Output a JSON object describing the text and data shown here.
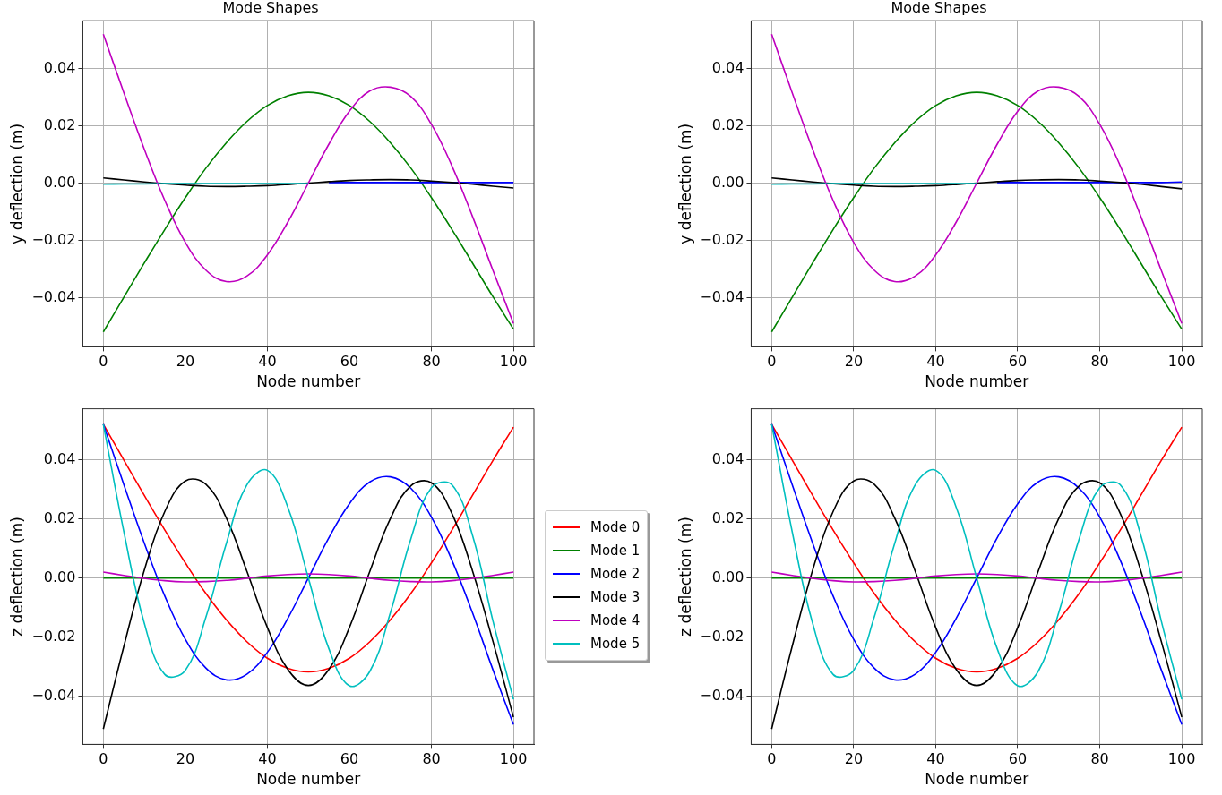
{
  "chart_data": [
    {
      "type": "line",
      "title": "Mode Shapes",
      "xlabel": "Node number",
      "ylabel": "y deflection (m)",
      "x": [
        0,
        5,
        10,
        15,
        20,
        25,
        30,
        35,
        40,
        45,
        50,
        55,
        60,
        65,
        70,
        75,
        80,
        85,
        90,
        95,
        100
      ],
      "xlim": [
        -5,
        105
      ],
      "ylim": [
        -0.0572,
        0.0567
      ],
      "xticks": [
        0,
        20,
        40,
        60,
        80,
        100
      ],
      "yticks": [
        {
          "value": -0.04,
          "label": "−0.04"
        },
        {
          "value": -0.02,
          "label": "−0.02"
        },
        {
          "value": 0,
          "label": "0.00"
        },
        {
          "value": 0.02,
          "label": "0.02"
        },
        {
          "value": 0.04,
          "label": "0.04"
        }
      ],
      "grid": true,
      "legend": false,
      "marker": "none",
      "line_style": "solid",
      "series": [
        {
          "color": "#008000",
          "values": [
            -0.052,
            -0.0399,
            -0.0279,
            -0.0162,
            -0.0051,
            0.0052,
            0.0141,
            0.0215,
            0.0271,
            0.0305,
            0.0317,
            0.0305,
            0.0271,
            0.0215,
            0.0141,
            0.0052,
            -0.0051,
            -0.0162,
            -0.0279,
            -0.0397,
            -0.051
          ]
        },
        {
          "color": "#0000ff",
          "values": [
            null,
            null,
            null,
            null,
            null,
            null,
            null,
            null,
            null,
            null,
            null,
            0.0002,
            0.0002,
            0.0002,
            0.0002,
            0.0002,
            0.0002,
            0.0002,
            0.0002,
            0.0002,
            0.0002
          ]
        },
        {
          "color": "#000000",
          "values": [
            0.0018,
            0.0011,
            0.0004,
            -0.0002,
            -0.0007,
            -0.0011,
            -0.0012,
            -0.0011,
            -0.0009,
            -0.0005,
            0,
            0.0005,
            0.0009,
            0.0011,
            0.0012,
            0.0011,
            0.0007,
            0.0002,
            -0.0004,
            -0.0011,
            -0.0017
          ]
        },
        {
          "color": "#bf00bf",
          "values": [
            0.052,
            0.0316,
            0.0118,
            -0.0061,
            -0.0207,
            -0.0304,
            -0.0344,
            -0.0325,
            -0.0251,
            -0.0136,
            0,
            0.0136,
            0.0251,
            0.0322,
            0.0335,
            0.0302,
            0.0205,
            0.006,
            -0.0116,
            -0.0305,
            -0.049
          ]
        },
        {
          "color": "#00bfbf",
          "values": [
            -0.0004,
            -0.0003,
            -0.0003,
            -0.0002,
            -0.0002,
            -0.0002,
            -0.0002,
            -0.0002,
            -0.0002,
            -0.0002,
            -0.0002,
            null,
            null,
            null,
            null,
            null,
            null,
            null,
            null,
            null,
            null
          ]
        }
      ]
    },
    {
      "type": "line",
      "title": "Mode Shapes",
      "xlabel": "Node number",
      "ylabel": "y deflection (m)",
      "x": [
        0,
        5,
        10,
        15,
        20,
        25,
        30,
        35,
        40,
        45,
        50,
        55,
        60,
        65,
        70,
        75,
        80,
        85,
        90,
        95,
        100
      ],
      "xlim": [
        -5,
        105
      ],
      "ylim": [
        -0.0572,
        0.0567
      ],
      "xticks": [
        0,
        20,
        40,
        60,
        80,
        100
      ],
      "yticks": [
        {
          "value": -0.04,
          "label": "−0.04"
        },
        {
          "value": -0.02,
          "label": "−0.02"
        },
        {
          "value": 0,
          "label": "0.00"
        },
        {
          "value": 0.02,
          "label": "0.02"
        },
        {
          "value": 0.04,
          "label": "0.04"
        }
      ],
      "grid": true,
      "legend": false,
      "marker": "none",
      "line_style": "solid",
      "series": [
        {
          "color": "#008000",
          "values": [
            -0.052,
            -0.0399,
            -0.0279,
            -0.0162,
            -0.0051,
            0.0052,
            0.0141,
            0.0215,
            0.0271,
            0.0305,
            0.0317,
            0.0305,
            0.0271,
            0.0215,
            0.0141,
            0.0052,
            -0.0051,
            -0.0162,
            -0.0279,
            -0.0397,
            -0.051
          ]
        },
        {
          "color": "#0000ff",
          "values": [
            null,
            null,
            null,
            null,
            null,
            null,
            null,
            null,
            null,
            null,
            null,
            0.0002,
            0.0002,
            0.0002,
            0.0002,
            0.0002,
            0.0002,
            0.0002,
            0.0002,
            0.0002,
            0.0004
          ]
        },
        {
          "color": "#000000",
          "values": [
            0.0018,
            0.0011,
            0.0004,
            -0.0002,
            -0.0007,
            -0.0011,
            -0.0012,
            -0.0011,
            -0.0009,
            -0.0005,
            0,
            0.0005,
            0.0009,
            0.0011,
            0.0012,
            0.0011,
            0.0007,
            0.0002,
            -0.0004,
            -0.0012,
            -0.002
          ]
        },
        {
          "color": "#bf00bf",
          "values": [
            0.052,
            0.0316,
            0.0118,
            -0.0061,
            -0.0207,
            -0.0304,
            -0.0344,
            -0.0325,
            -0.0251,
            -0.0136,
            0,
            0.0136,
            0.0251,
            0.0322,
            0.0335,
            0.0302,
            0.0205,
            0.006,
            -0.0116,
            -0.0305,
            -0.049
          ]
        },
        {
          "color": "#00bfbf",
          "values": [
            -0.0004,
            -0.0003,
            -0.0003,
            -0.0002,
            -0.0002,
            -0.0002,
            -0.0002,
            -0.0002,
            -0.0002,
            -0.0002,
            -0.0002,
            null,
            null,
            null,
            null,
            null,
            null,
            null,
            null,
            null,
            null
          ]
        }
      ]
    },
    {
      "type": "line",
      "xlabel": "Node number",
      "ylabel": "z deflection (m)",
      "x": [
        0,
        5,
        10,
        15,
        20,
        25,
        30,
        35,
        40,
        45,
        50,
        55,
        60,
        65,
        70,
        75,
        80,
        85,
        90,
        95,
        100
      ],
      "xlim": [
        -5,
        105
      ],
      "ylim": [
        -0.0562,
        0.0572
      ],
      "xticks": [
        0,
        20,
        40,
        60,
        80,
        100
      ],
      "yticks": [
        {
          "value": -0.04,
          "label": "−0.04"
        },
        {
          "value": -0.02,
          "label": "−0.02"
        },
        {
          "value": 0,
          "label": "0.00"
        },
        {
          "value": 0.02,
          "label": "0.02"
        },
        {
          "value": 0.04,
          "label": "0.04"
        }
      ],
      "grid": true,
      "legend": "right",
      "marker": "none",
      "line_style": "solid",
      "series": [
        {
          "name": "Mode 0",
          "color": "#ff0000",
          "values": [
            0.052,
            0.0399,
            0.0279,
            0.0162,
            0.0051,
            -0.0052,
            -0.0141,
            -0.0215,
            -0.0271,
            -0.0305,
            -0.0317,
            -0.0305,
            -0.0271,
            -0.0215,
            -0.0141,
            -0.0052,
            0.0051,
            0.0162,
            0.0279,
            0.0397,
            0.051
          ]
        },
        {
          "name": "Mode 1",
          "color": "#008000",
          "values": [
            0,
            0,
            0,
            0,
            0,
            0,
            0,
            0,
            0,
            0,
            0,
            0,
            0,
            0,
            0,
            0,
            0,
            0,
            0,
            0,
            0
          ]
        },
        {
          "name": "Mode 2",
          "color": "#0000ff",
          "values": [
            0.052,
            0.0316,
            0.0118,
            -0.0061,
            -0.0207,
            -0.0304,
            -0.0344,
            -0.0325,
            -0.0251,
            -0.0136,
            0,
            0.0136,
            0.0251,
            0.0325,
            0.0342,
            0.0303,
            0.0206,
            0.006,
            -0.0117,
            -0.031,
            -0.0495
          ]
        },
        {
          "name": "Mode 3",
          "color": "#000000",
          "values": [
            -0.051,
            -0.0231,
            0.0027,
            0.0225,
            0.0328,
            0.0317,
            0.0203,
            0.0023,
            -0.0167,
            -0.0309,
            -0.0363,
            -0.0309,
            -0.0167,
            0.0023,
            0.0201,
            0.0312,
            0.0322,
            0.0218,
            0.0025,
            -0.0214,
            -0.047
          ]
        },
        {
          "name": "Mode 4",
          "color": "#bf00bf",
          "values": [
            0.002,
            0.0009,
            -0.0001,
            -0.0009,
            -0.0013,
            -0.0012,
            -0.0008,
            -0.0001,
            0.0007,
            0.0012,
            0.0014,
            0.0012,
            0.0007,
            -0.0001,
            -0.0008,
            -0.0012,
            -0.0013,
            -0.0009,
            -0.0001,
            0.0009,
            0.002
          ]
        },
        {
          "name": "Mode 5",
          "color": "#00bfbf",
          "values": [
            0.052,
            0.0157,
            -0.0153,
            -0.0326,
            -0.0312,
            -0.0133,
            0.0117,
            0.0315,
            0.0364,
            0.0239,
            0,
            -0.0239,
            -0.0364,
            -0.0315,
            -0.0117,
            0.0133,
            0.0305,
            0.0315,
            0.0145,
            -0.0145,
            -0.041
          ]
        }
      ]
    },
    {
      "type": "line",
      "xlabel": "Node number",
      "ylabel": "z deflection (m)",
      "x": [
        0,
        5,
        10,
        15,
        20,
        25,
        30,
        35,
        40,
        45,
        50,
        55,
        60,
        65,
        70,
        75,
        80,
        85,
        90,
        95,
        100
      ],
      "xlim": [
        -5,
        105
      ],
      "ylim": [
        -0.0562,
        0.0572
      ],
      "xticks": [
        0,
        20,
        40,
        60,
        80,
        100
      ],
      "yticks": [
        {
          "value": -0.04,
          "label": "−0.04"
        },
        {
          "value": -0.02,
          "label": "−0.02"
        },
        {
          "value": 0,
          "label": "0.00"
        },
        {
          "value": 0.02,
          "label": "0.02"
        },
        {
          "value": 0.04,
          "label": "0.04"
        }
      ],
      "grid": true,
      "legend": false,
      "marker": "none",
      "line_style": "solid",
      "series": [
        {
          "color": "#ff0000",
          "values": [
            0.052,
            0.0399,
            0.0279,
            0.0162,
            0.0051,
            -0.0052,
            -0.0141,
            -0.0215,
            -0.0271,
            -0.0305,
            -0.0317,
            -0.0305,
            -0.0271,
            -0.0215,
            -0.0141,
            -0.0052,
            0.0051,
            0.0162,
            0.0279,
            0.0397,
            0.051
          ]
        },
        {
          "color": "#008000",
          "values": [
            0,
            0,
            0,
            0,
            0,
            0,
            0,
            0,
            0,
            0,
            0,
            0,
            0,
            0,
            0,
            0,
            0,
            0,
            0,
            0,
            0
          ]
        },
        {
          "color": "#0000ff",
          "values": [
            0.052,
            0.0316,
            0.0118,
            -0.0061,
            -0.0207,
            -0.0304,
            -0.0344,
            -0.0325,
            -0.0251,
            -0.0136,
            0,
            0.0136,
            0.0251,
            0.0325,
            0.0342,
            0.0303,
            0.0206,
            0.006,
            -0.0117,
            -0.031,
            -0.0495
          ]
        },
        {
          "color": "#000000",
          "values": [
            -0.051,
            -0.0231,
            0.0027,
            0.0225,
            0.0328,
            0.0317,
            0.0203,
            0.0023,
            -0.0167,
            -0.0309,
            -0.0363,
            -0.0309,
            -0.0167,
            0.0023,
            0.0201,
            0.0312,
            0.0322,
            0.0218,
            0.0025,
            -0.0214,
            -0.047
          ]
        },
        {
          "color": "#bf00bf",
          "values": [
            0.002,
            0.0009,
            -0.0001,
            -0.0009,
            -0.0013,
            -0.0012,
            -0.0008,
            -0.0001,
            0.0007,
            0.0012,
            0.0014,
            0.0012,
            0.0007,
            -0.0001,
            -0.0008,
            -0.0012,
            -0.0013,
            -0.0009,
            -0.0001,
            0.0009,
            0.002
          ]
        },
        {
          "color": "#00bfbf",
          "values": [
            0.052,
            0.0157,
            -0.0153,
            -0.0326,
            -0.0312,
            -0.0133,
            0.0117,
            0.0315,
            0.0364,
            0.0239,
            0,
            -0.0239,
            -0.0364,
            -0.0315,
            -0.0117,
            0.0133,
            0.0305,
            0.0315,
            0.0145,
            -0.0145,
            -0.041
          ]
        }
      ]
    }
  ]
}
